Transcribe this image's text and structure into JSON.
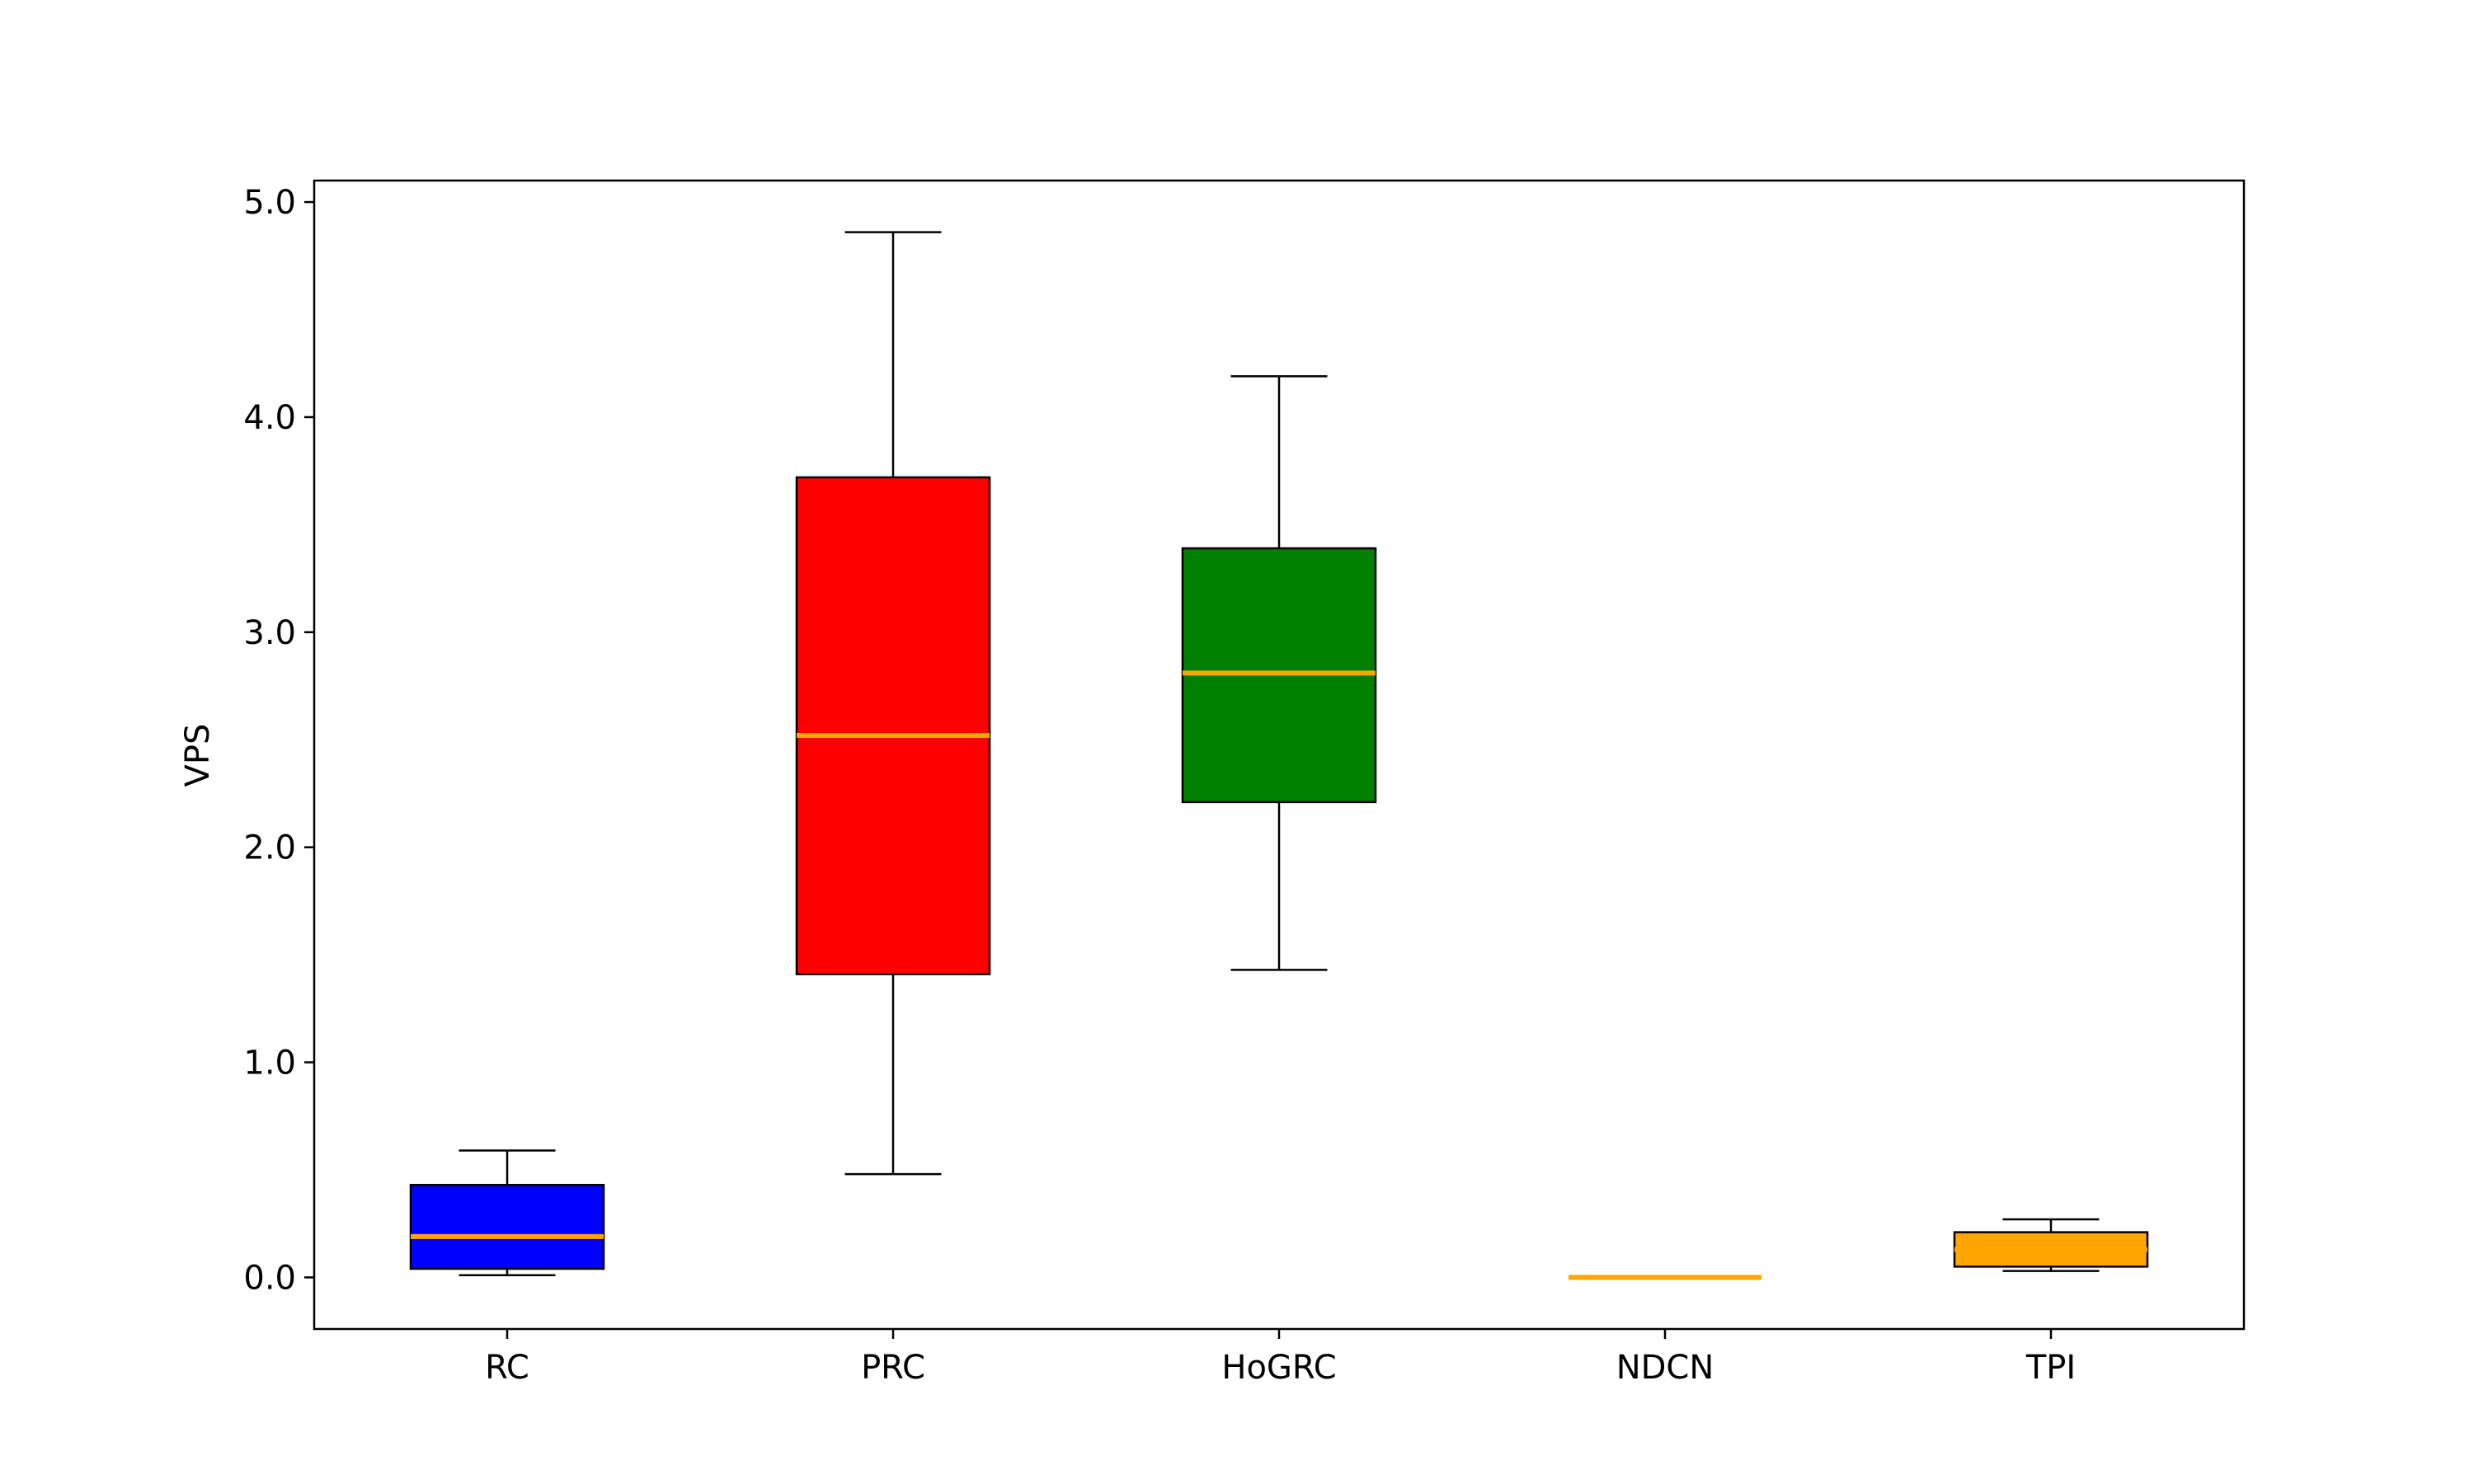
{
  "chart_data": {
    "type": "box",
    "xlabel": "",
    "ylabel": "VPS",
    "ylim": [
      -0.24,
      5.1
    ],
    "yticks": [
      "0.0",
      "1.0",
      "2.0",
      "3.0",
      "4.0",
      "5.0"
    ],
    "grid": false,
    "median_color": "#FFA500",
    "series": [
      {
        "name": "RC",
        "color": "#0000FF",
        "whisker_low": 0.01,
        "q1": 0.04,
        "median": 0.19,
        "q3": 0.43,
        "whisker_high": 0.59
      },
      {
        "name": "PRC",
        "color": "#FF0000",
        "whisker_low": 0.48,
        "q1": 1.41,
        "median": 2.52,
        "q3": 3.72,
        "whisker_high": 4.86
      },
      {
        "name": "HoGRC",
        "color": "#008000",
        "whisker_low": 1.43,
        "q1": 2.21,
        "median": 2.81,
        "q3": 3.39,
        "whisker_high": 4.19
      },
      {
        "name": "NDCN",
        "color": "#FFA500",
        "whisker_low": 0.0,
        "q1": 0.0,
        "median": 0.0,
        "q3": 0.0,
        "whisker_high": 0.0
      },
      {
        "name": "TPI",
        "color": "#FFA500",
        "whisker_low": 0.03,
        "q1": 0.05,
        "median": 0.13,
        "q3": 0.21,
        "whisker_high": 0.27
      }
    ]
  }
}
